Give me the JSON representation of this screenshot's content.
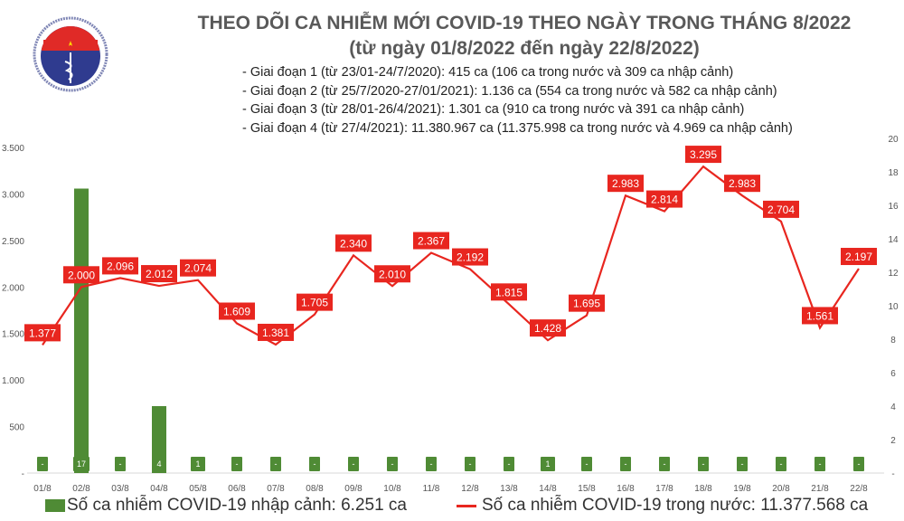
{
  "header": {
    "logo_text": "BỘ Y TẾ · MINISTRY OF HEALTH",
    "title": "THEO DÕI CA NHIỄM MỚI COVID-19 THEO NGÀY TRONG THÁNG 8/2022",
    "subtitle": "(từ ngày 01/8/2022 đến ngày 22/8/2022)",
    "notes": [
      "- Giai đoạn 1 (từ 23/01-24/7/2020): 415 ca (106 ca trong nước và 309 ca nhập cảnh)",
      "- Giai đoạn 2 (từ 25/7/2020-27/01/2021): 1.136 ca (554 ca trong nước và 582 ca nhập cảnh)",
      "- Giai đoạn 3 (từ 28/01-26/4/2021): 1.301 ca (910 ca trong nước và 391 ca nhập cảnh)",
      "- Giai đoạn 4 (từ 27/4/2021): 11.380.967 ca (11.375.998 ca trong nước và 4.969 ca nhập cảnh)"
    ]
  },
  "chart_data": {
    "type": "bar+line",
    "categories": [
      "01/8",
      "02/8",
      "03/8",
      "04/8",
      "05/8",
      "06/8",
      "07/8",
      "08/8",
      "09/8",
      "10/8",
      "11/8",
      "12/8",
      "13/8",
      "14/8",
      "15/8",
      "16/8",
      "17/8",
      "18/8",
      "19/8",
      "20/8",
      "21/8",
      "22/8"
    ],
    "series": [
      {
        "name": "Số ca nhiễm COVID-19 nhập cảnh: 6.251 ca",
        "type": "bar",
        "axis": "right",
        "color": "#4f8b35",
        "values": [
          0,
          17,
          0,
          4,
          1,
          0,
          0,
          0,
          0,
          0,
          0,
          0,
          0,
          1,
          0,
          0,
          0,
          0,
          0,
          0,
          0,
          0
        ],
        "labels": [
          "-",
          "17",
          "-",
          "4",
          "1",
          "-",
          "-",
          "-",
          "-",
          "-",
          "-",
          "-",
          "-",
          "1",
          "-",
          "-",
          "-",
          "-",
          "-",
          "-",
          "-",
          "-"
        ]
      },
      {
        "name": "Số ca nhiễm COVID-19 trong nước: 11.377.568 ca",
        "type": "line",
        "axis": "left",
        "color": "#e8261f",
        "values": [
          1377,
          2000,
          2096,
          2012,
          2074,
          1609,
          1381,
          1705,
          2340,
          2010,
          2367,
          2192,
          1815,
          1428,
          1695,
          2983,
          2814,
          3295,
          2983,
          2704,
          1561,
          2197
        ],
        "labels": [
          "1.377",
          "2.000",
          "2.096",
          "2.012",
          "2.074",
          "1.609",
          "1.381",
          "1.705",
          "2.340",
          "2.010",
          "2.367",
          "2.192",
          "1.815",
          "1.428",
          "1.695",
          "2.983",
          "2.814",
          "3.295",
          "2.983",
          "2.704",
          "1.561",
          "2.197"
        ]
      }
    ],
    "left_axis": {
      "range": [
        0,
        3500
      ],
      "ticks": [
        "-",
        "500",
        "1.000",
        "1.500",
        "2.000",
        "2.500",
        "3.000",
        "3.500"
      ]
    },
    "right_axis": {
      "range": [
        0,
        20
      ],
      "ticks": [
        "-",
        "2",
        "4",
        "6",
        "8",
        "10",
        "12",
        "14",
        "16",
        "18",
        "20"
      ]
    },
    "grid": false,
    "legend": "bottom"
  }
}
